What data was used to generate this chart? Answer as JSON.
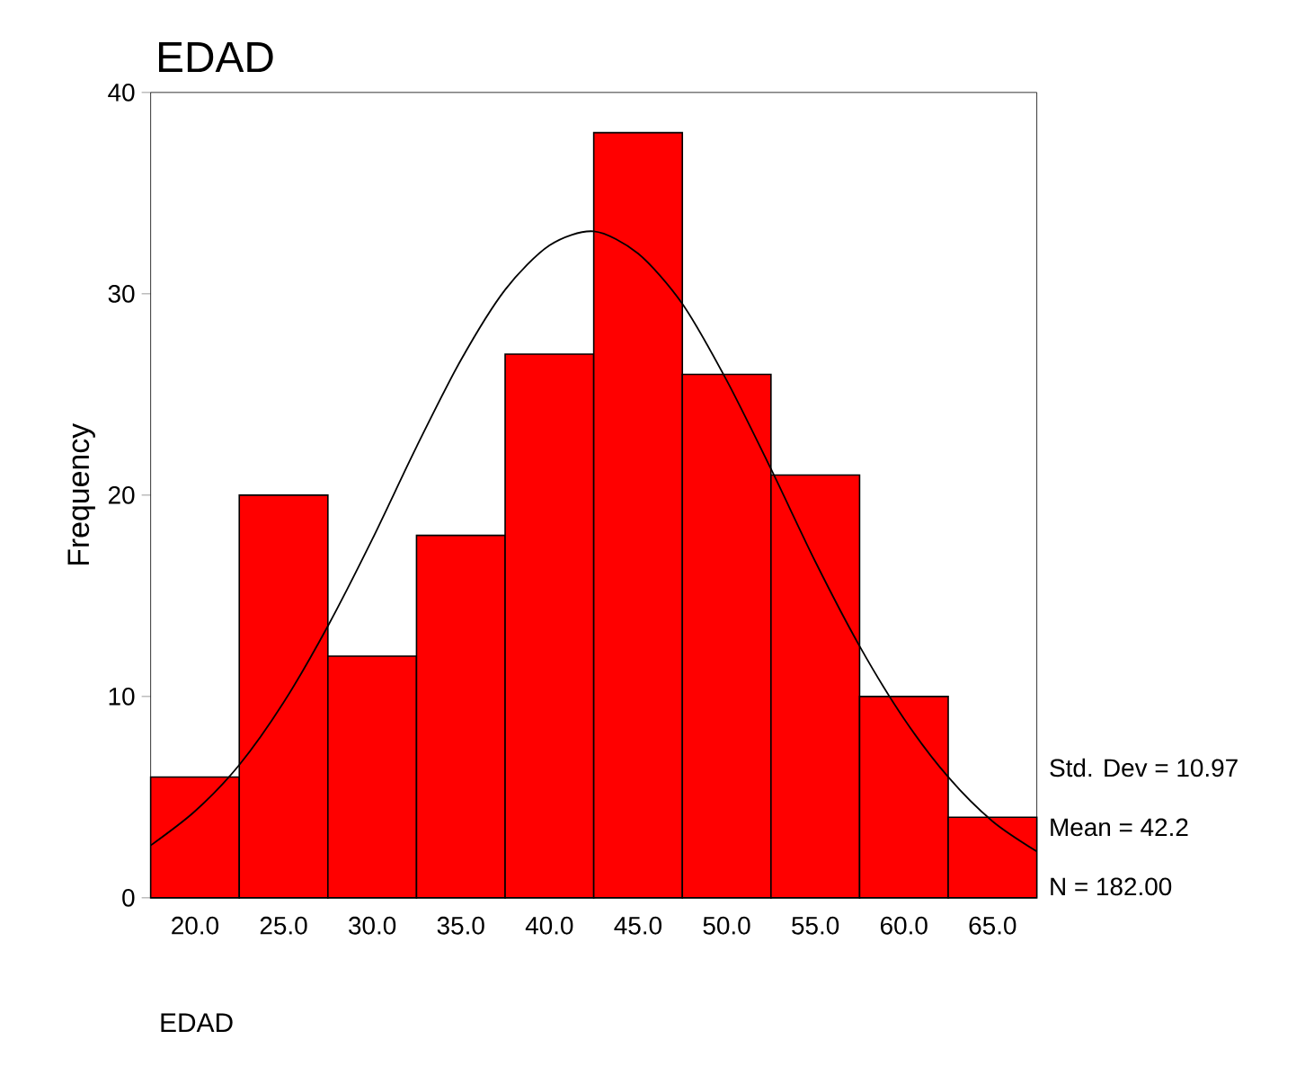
{
  "chart_data": {
    "type": "histogram",
    "title": "EDAD",
    "xlabel": "EDAD",
    "ylabel": "Frequency",
    "bins": [
      17.5,
      22.5,
      27.5,
      32.5,
      37.5,
      42.5,
      47.5,
      52.5,
      57.5,
      62.5,
      67.5
    ],
    "values": [
      6,
      20,
      12,
      18,
      27,
      38,
      26,
      21,
      10,
      4
    ],
    "color": "#ff0000",
    "series": [
      {
        "type": "line",
        "color": "#000000",
        "x": [
          17.5,
          20,
          22.5,
          25,
          27.5,
          30,
          32.5,
          35,
          37.5,
          40,
          42.5,
          45,
          47.5,
          50,
          52.5,
          55,
          57.5,
          60,
          62.5,
          65,
          67.5
        ],
        "values": [
          2.6,
          4.3,
          6.6,
          9.7,
          13.5,
          17.8,
          22.4,
          26.7,
          30.2,
          32.4,
          33.1,
          32.0,
          29.5,
          25.7,
          21.3,
          16.7,
          12.5,
          8.9,
          6.0,
          3.8,
          2.3
        ]
      }
    ],
    "xlim": [
      17.5,
      67.5
    ],
    "ylim": [
      0,
      40
    ],
    "xticks": [
      {
        "value": 20,
        "label": "20.0"
      },
      {
        "value": 25,
        "label": "25.0"
      },
      {
        "value": 30,
        "label": "30.0"
      },
      {
        "value": 35,
        "label": "35.0"
      },
      {
        "value": 40,
        "label": "40.0"
      },
      {
        "value": 45,
        "label": "45.0"
      },
      {
        "value": 50,
        "label": "50.0"
      },
      {
        "value": 55,
        "label": "55.0"
      },
      {
        "value": 60,
        "label": "60.0"
      },
      {
        "value": 65,
        "label": "65.0"
      }
    ],
    "yticks": [
      0,
      10,
      20,
      30,
      40
    ],
    "annotations": [
      "Std. Dev = 10.97",
      "Mean = 42.2",
      "N = 182.00"
    ],
    "grid": false,
    "marker": "none",
    "line_style": "solid"
  }
}
